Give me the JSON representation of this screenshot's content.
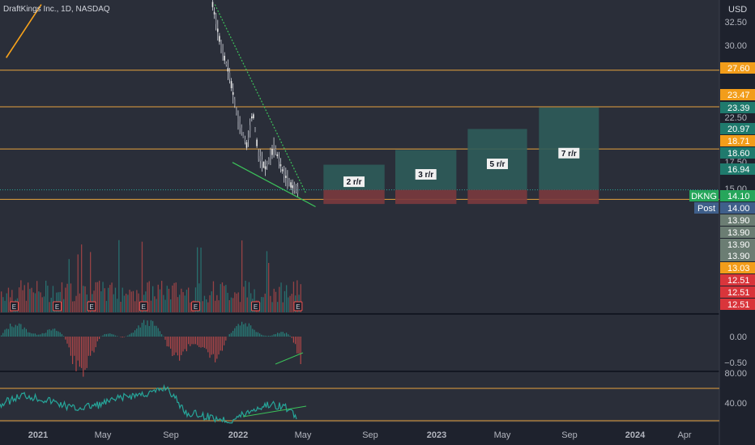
{
  "header": {
    "title": "DraftKings Inc., 1D, NASDAQ",
    "currency": "USD"
  },
  "colors": {
    "background": "#1e222d",
    "pane_bg": "#2a2e39",
    "divider": "#131722",
    "orange": "#f7a21b",
    "level_line": "#e6a33e",
    "green": "#26a69a",
    "red": "#ef5350",
    "wedge": "#3cc25a",
    "target_box": "#2e5c5a",
    "stop_box": "#7a3a3e",
    "axis_text": "#d1d4dc",
    "ticker_bg": "#26a65b",
    "post_bg": "#3a5a8c"
  },
  "price_axis": {
    "ticks": [
      "32.50",
      "30.00",
      "22.50",
      "17.50",
      "15.00"
    ],
    "tags": [
      {
        "text": "27.60",
        "value": 27.6,
        "style": "orange"
      },
      {
        "text": "23.47",
        "value": 23.47,
        "style": "orange"
      },
      {
        "text": "23.39",
        "value": 23.39,
        "style": "teal"
      },
      {
        "text": "20.97",
        "value": 20.97,
        "style": "teal"
      },
      {
        "text": "18.71",
        "value": 18.71,
        "style": "orange"
      },
      {
        "text": "18.60",
        "value": 18.6,
        "style": "teal"
      },
      {
        "text": "16.94",
        "value": 16.94,
        "style": "teal"
      },
      {
        "text": "14.00",
        "value": 14.0,
        "style": "post"
      },
      {
        "text": "13.90",
        "value": 13.9,
        "style": "gray"
      },
      {
        "text": "13.90",
        "value": 13.9,
        "style": "gray"
      },
      {
        "text": "13.90",
        "value": 13.9,
        "style": "gray"
      },
      {
        "text": "13.90",
        "value": 13.9,
        "style": "gray"
      },
      {
        "text": "13.03",
        "value": 13.03,
        "style": "orange"
      },
      {
        "text": "12.51",
        "value": 12.51,
        "style": "red"
      },
      {
        "text": "12.51",
        "value": 12.51,
        "style": "red"
      },
      {
        "text": "12.51",
        "value": 12.51,
        "style": "red"
      }
    ],
    "ticker": {
      "symbol": "DKNG",
      "price": "14.10"
    },
    "post": {
      "label": "Post",
      "price": "14.00"
    }
  },
  "horizontal_levels": [
    27.6,
    23.47,
    18.71,
    13.03
  ],
  "targets": [
    {
      "label": "2 r/r",
      "top": 16.94,
      "entry": 14.1,
      "stop": 12.51
    },
    {
      "label": "3 r/r",
      "top": 18.6,
      "entry": 14.1,
      "stop": 12.51
    },
    {
      "label": "5 r/r",
      "top": 20.97,
      "entry": 14.1,
      "stop": 12.51
    },
    {
      "label": "7 r/r",
      "top": 23.39,
      "entry": 14.1,
      "stop": 12.51
    }
  ],
  "osc_axis": {
    "ticks": [
      "0.00",
      "−0.50"
    ]
  },
  "rsi_axis": {
    "ticks": [
      "80.00",
      "40.00"
    ],
    "levels": [
      70,
      30
    ]
  },
  "time_axis": {
    "labels": [
      "2021",
      "May",
      "Sep",
      "2022",
      "May",
      "Sep",
      "2023",
      "May",
      "Sep",
      "2024",
      "Apr"
    ]
  },
  "chart_data": {
    "type": "line",
    "title": "DraftKings Inc., 1D, NASDAQ",
    "y_unit": "USD",
    "price_path": [
      {
        "date": "2021-12-01",
        "price": 35.0
      },
      {
        "date": "2021-12-15",
        "price": 30.5
      },
      {
        "date": "2021-12-31",
        "price": 27.0
      },
      {
        "date": "2022-01-15",
        "price": 22.0
      },
      {
        "date": "2022-01-31",
        "price": 19.0
      },
      {
        "date": "2022-02-10",
        "price": 23.0
      },
      {
        "date": "2022-02-20",
        "price": 18.0
      },
      {
        "date": "2022-03-05",
        "price": 16.5
      },
      {
        "date": "2022-03-20",
        "price": 19.0
      },
      {
        "date": "2022-04-05",
        "price": 16.0
      },
      {
        "date": "2022-04-20",
        "price": 14.5
      },
      {
        "date": "2022-05-01",
        "price": 14.1
      }
    ],
    "moving_average": [
      {
        "date": "2020-12-01",
        "price": 29.0
      },
      {
        "date": "2021-01-01",
        "price": 32.0
      },
      {
        "date": "2021-02-01",
        "price": 35.0
      }
    ],
    "wedge_upper": [
      {
        "date": "2021-12-05",
        "price": 35.0
      },
      {
        "date": "2022-05-15",
        "price": 13.7
      }
    ],
    "wedge_lower": [
      {
        "date": "2022-01-05",
        "price": 17.2
      },
      {
        "date": "2022-06-01",
        "price": 12.2
      }
    ],
    "earnings_markers": [
      "2020-12-15",
      "2021-03-01",
      "2021-05-01",
      "2021-08-01",
      "2021-11-01",
      "2022-02-15",
      "2022-05-01"
    ],
    "rsi_path": [
      {
        "date": "2020-11-20",
        "price": 50
      },
      {
        "date": "2021-01-01",
        "price": 62
      },
      {
        "date": "2021-02-15",
        "price": 55
      },
      {
        "date": "2021-04-01",
        "price": 45
      },
      {
        "date": "2021-05-15",
        "price": 50
      },
      {
        "date": "2021-07-01",
        "price": 60
      },
      {
        "date": "2021-08-20",
        "price": 65
      },
      {
        "date": "2021-09-10",
        "price": 72
      },
      {
        "date": "2021-10-15",
        "price": 40
      },
      {
        "date": "2021-12-01",
        "price": 34
      },
      {
        "date": "2022-01-01",
        "price": 30
      },
      {
        "date": "2022-02-15",
        "price": 45
      },
      {
        "date": "2022-03-10",
        "price": 50
      },
      {
        "date": "2022-04-05",
        "price": 48
      },
      {
        "date": "2022-04-30",
        "price": 36
      }
    ],
    "xlim": [
      "2020-11-20",
      "2024-05-15"
    ],
    "ylim": [
      11.8,
      34.6
    ],
    "grid": false
  }
}
